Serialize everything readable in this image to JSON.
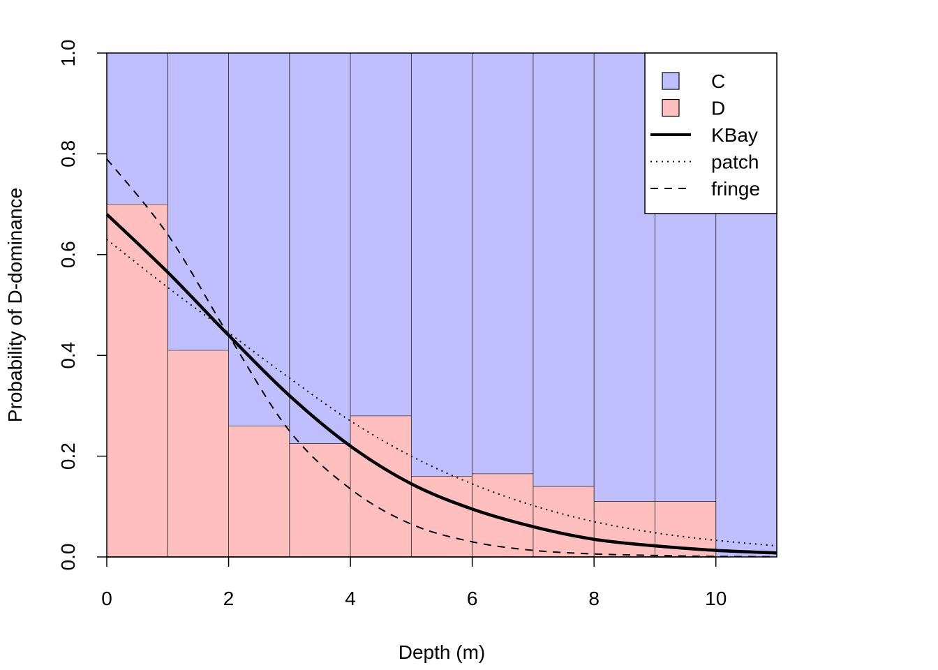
{
  "chart_data": {
    "type": "bar",
    "stacked": true,
    "xlabel": "Depth (m)",
    "ylabel": "Probability of D-dominance",
    "xlim": [
      0,
      11
    ],
    "ylim": [
      0,
      1
    ],
    "x_ticks": [
      0,
      2,
      4,
      6,
      8,
      10
    ],
    "y_ticks": [
      0.0,
      0.2,
      0.4,
      0.6,
      0.8,
      1.0
    ],
    "x_tick_labels": [
      "0",
      "2",
      "4",
      "6",
      "8",
      "10"
    ],
    "y_tick_labels": [
      "0.0",
      "0.2",
      "0.4",
      "0.6",
      "0.8",
      "1.0"
    ],
    "grid": false,
    "bins": [
      {
        "x0": 0,
        "x1": 1,
        "d": 0.7
      },
      {
        "x0": 1,
        "x1": 2,
        "d": 0.41
      },
      {
        "x0": 2,
        "x1": 3,
        "d": 0.26
      },
      {
        "x0": 3,
        "x1": 4,
        "d": 0.225
      },
      {
        "x0": 4,
        "x1": 5,
        "d": 0.28
      },
      {
        "x0": 5,
        "x1": 6,
        "d": 0.16
      },
      {
        "x0": 6,
        "x1": 7,
        "d": 0.165
      },
      {
        "x0": 7,
        "x1": 8,
        "d": 0.14
      },
      {
        "x0": 8,
        "x1": 9,
        "d": 0.11
      },
      {
        "x0": 9,
        "x1": 10,
        "d": 0.11
      },
      {
        "x0": 10,
        "x1": 11,
        "d": 0.0
      }
    ],
    "bar_series": [
      {
        "name": "C",
        "color": "#bfbfff"
      },
      {
        "name": "D",
        "color": "#ffbfbf"
      }
    ],
    "curves": [
      {
        "name": "KBay",
        "style": "solid",
        "x": [
          0,
          1,
          2,
          3,
          4,
          5,
          6,
          7,
          8,
          9,
          10,
          11
        ],
        "y": [
          0.68,
          0.565,
          0.44,
          0.32,
          0.22,
          0.145,
          0.095,
          0.06,
          0.035,
          0.022,
          0.013,
          0.008
        ]
      },
      {
        "name": "patch",
        "style": "dotted",
        "x": [
          0,
          1,
          2,
          3,
          4,
          5,
          6,
          7,
          8,
          9,
          10,
          11
        ],
        "y": [
          0.63,
          0.535,
          0.445,
          0.355,
          0.27,
          0.2,
          0.145,
          0.102,
          0.07,
          0.048,
          0.033,
          0.022
        ]
      },
      {
        "name": "fringe",
        "style": "dashed",
        "x": [
          0,
          1,
          2,
          3,
          4,
          5,
          6,
          7,
          8,
          9,
          10,
          11
        ],
        "y": [
          0.79,
          0.64,
          0.44,
          0.25,
          0.135,
          0.065,
          0.03,
          0.013,
          0.006,
          0.003,
          0.001,
          0.0005
        ]
      }
    ],
    "legend": {
      "placement": "top-right",
      "entries": [
        {
          "label": "C",
          "kind": "box",
          "color": "#bfbfff"
        },
        {
          "label": "D",
          "kind": "box",
          "color": "#ffbfbf"
        },
        {
          "label": "KBay",
          "kind": "line",
          "style": "solid"
        },
        {
          "label": "patch",
          "kind": "line",
          "style": "dotted"
        },
        {
          "label": "fringe",
          "kind": "line",
          "style": "dashed"
        }
      ]
    }
  }
}
